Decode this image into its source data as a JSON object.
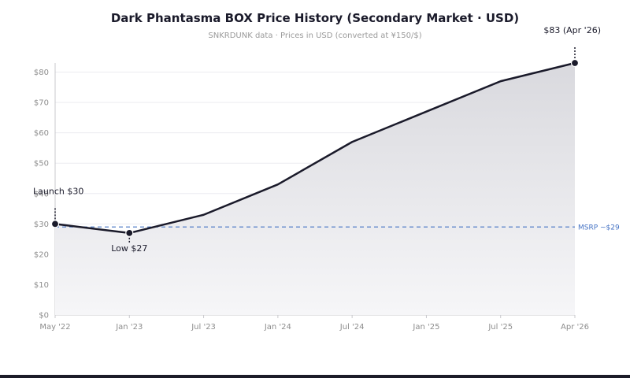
{
  "colors": {
    "line": "#1a1a2a",
    "area_top": "#d9d9de",
    "area_bottom": "#f6f6f8",
    "grid": "#ececf0",
    "axis": "#c8c8cc",
    "reference": "#4472c4",
    "bottom_bar": "#1c1c28"
  },
  "chart_data": {
    "type": "area",
    "title": "Dark Phantasma BOX Price History (Secondary Market · USD)",
    "subtitle": "SNKRDUNK data · Prices in USD (converted at ¥150/$)",
    "xlabel": "",
    "ylabel": "",
    "x_ticks": [
      "May '22",
      "Jan '23",
      "Jul '23",
      "Jan '24",
      "Jul '24",
      "Jan '25",
      "Jul '25",
      "Apr '26"
    ],
    "y_ticks": [
      "$0",
      "$10",
      "$20",
      "$30",
      "$40",
      "$50",
      "$60",
      "$70",
      "$80"
    ],
    "ylim": [
      0,
      83
    ],
    "grid": true,
    "series": [
      {
        "x": [
          "May '22",
          "Jan '23",
          "Jul '23",
          "Jan '24",
          "Jul '24",
          "Jan '25",
          "Jul '25",
          "Apr '26"
        ],
        "values": [
          30,
          27,
          33,
          43,
          57,
          67,
          77,
          83
        ]
      }
    ],
    "reference_line": {
      "value": 29,
      "label": "MSRP ~$29"
    },
    "annotations": [
      {
        "index": 0,
        "label": "Launch $30",
        "placement": "above"
      },
      {
        "index": 1,
        "label": "Low $27",
        "placement": "below"
      },
      {
        "index": 7,
        "label": "$83 (Apr '26)",
        "placement": "above"
      }
    ]
  }
}
